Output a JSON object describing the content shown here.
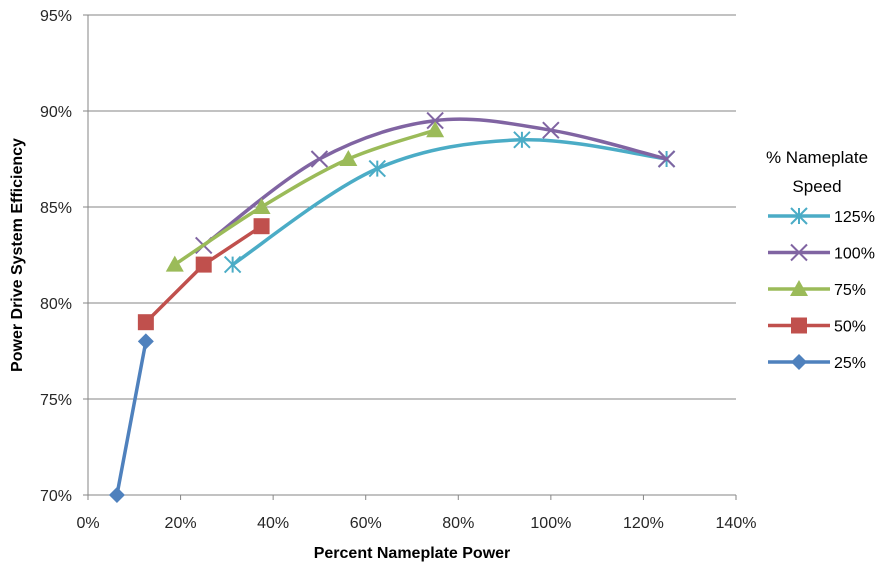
{
  "chart_data": {
    "type": "line",
    "xlabel": "Percent Nameplate Power",
    "ylabel": "Power Drive System Efficiency",
    "xlim": [
      0,
      140
    ],
    "ylim": [
      70,
      95
    ],
    "x_ticks": [
      "0%",
      "20%",
      "40%",
      "60%",
      "80%",
      "100%",
      "120%",
      "140%"
    ],
    "y_ticks": [
      "70%",
      "75%",
      "80%",
      "85%",
      "90%",
      "95%"
    ],
    "grid": "horizontal",
    "legend_title": [
      "% Nameplate",
      "Speed"
    ],
    "legend_position": "right",
    "series": [
      {
        "name": "125%",
        "color": "#4BACC6",
        "marker": "asterisk",
        "smooth": true,
        "points": [
          [
            31.25,
            82.0
          ],
          [
            62.5,
            87.0
          ],
          [
            93.75,
            88.5
          ],
          [
            125.0,
            87.5
          ]
        ]
      },
      {
        "name": "100%",
        "color": "#8064A2",
        "marker": "x",
        "smooth": true,
        "points": [
          [
            25.0,
            83.0
          ],
          [
            50.0,
            87.5
          ],
          [
            75.0,
            89.5
          ],
          [
            100.0,
            89.0
          ],
          [
            125.0,
            87.5
          ]
        ]
      },
      {
        "name": "75%",
        "color": "#9BBB59",
        "marker": "triangle",
        "smooth": true,
        "points": [
          [
            18.75,
            82.0
          ],
          [
            37.5,
            85.0
          ],
          [
            56.25,
            87.5
          ],
          [
            75.0,
            89.0
          ]
        ]
      },
      {
        "name": "50%",
        "color": "#C0504D",
        "marker": "square",
        "smooth": false,
        "points": [
          [
            12.5,
            79.0
          ],
          [
            25.0,
            82.0
          ],
          [
            37.5,
            84.0
          ]
        ]
      },
      {
        "name": "25%",
        "color": "#4F81BD",
        "marker": "diamond",
        "smooth": false,
        "points": [
          [
            6.25,
            70.0
          ],
          [
            12.5,
            78.0
          ]
        ]
      }
    ]
  }
}
